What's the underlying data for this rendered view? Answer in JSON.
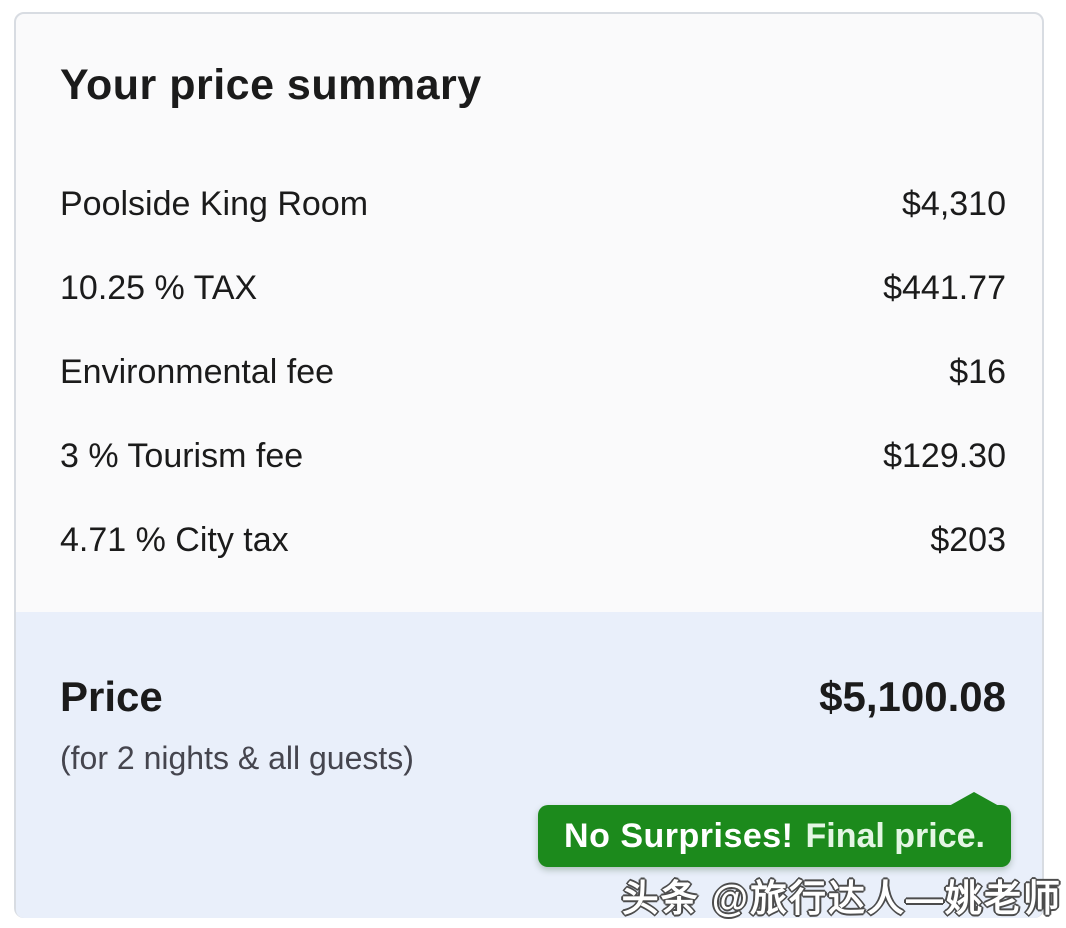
{
  "card": {
    "title": "Your price summary",
    "line_items": [
      {
        "label": "Poolside King Room",
        "amount": "$4,310"
      },
      {
        "label": "10.25 % TAX",
        "amount": "$441.77"
      },
      {
        "label": "Environmental fee",
        "amount": "$16"
      },
      {
        "label": "3 % Tourism fee",
        "amount": "$129.30"
      },
      {
        "label": "4.71 % City tax",
        "amount": "$203"
      }
    ],
    "total": {
      "label": "Price",
      "amount": "$5,100.08",
      "note": "(for 2 nights & all guests)"
    },
    "tooltip": {
      "highlight": "No Surprises!",
      "text": "Final price."
    }
  },
  "watermark": "头条 @旅行达人—姚老师",
  "colors": {
    "card_background": "#fafafb",
    "card_border": "#d8dce2",
    "total_background": "#e9effa",
    "tooltip_green": "#1c8a1c",
    "text_dark": "#1b1b1b",
    "note_gray": "#45454e"
  }
}
